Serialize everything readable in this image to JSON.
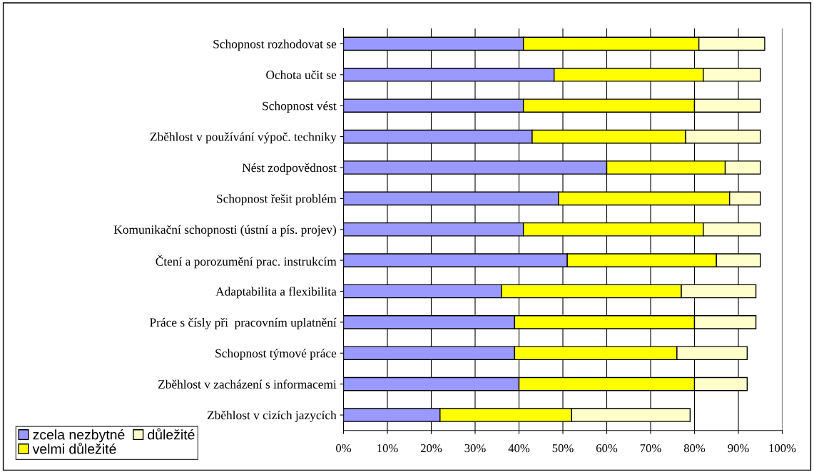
{
  "chart_data": {
    "type": "bar",
    "orientation": "horizontal",
    "stacked": true,
    "categories": [
      "Schopnost rozhodovat se",
      "Ochota učit se",
      "Schopnost vést",
      "Zběhlost v používání výpoč. techniky",
      "Nést zodpovědnost",
      "Schopnost řešit problém",
      "Komunikační schopnosti (ústní a pís. projev)",
      "Čtení a porozumění prac. instrukcím",
      "Adaptabilita a flexibilita",
      "Práce s čísly při  pracovním uplatnění",
      "Schopnost týmové práce",
      "Zběhlost v zacházení s informacemi",
      "Zběhlost v cizích jazycích"
    ],
    "series": [
      {
        "name": "zcela nezbytné",
        "color": "#9999ff",
        "values": [
          41,
          48,
          41,
          43,
          60,
          49,
          41,
          51,
          36,
          39,
          39,
          40,
          22
        ]
      },
      {
        "name": "velmi důležité",
        "color": "#ffff00",
        "values": [
          40,
          34,
          39,
          35,
          27,
          39,
          41,
          34,
          41,
          41,
          37,
          40,
          30
        ]
      },
      {
        "name": "důležité",
        "color": "#ffffcc",
        "values": [
          15,
          13,
          15,
          17,
          8,
          7,
          13,
          10,
          17,
          14,
          16,
          12,
          27
        ]
      }
    ],
    "xlim": [
      0,
      100
    ],
    "xticks": [
      {
        "value": 0,
        "label": "0%"
      },
      {
        "value": 10,
        "label": "10%"
      },
      {
        "value": 20,
        "label": "20%"
      },
      {
        "value": 30,
        "label": "30%"
      },
      {
        "value": 40,
        "label": "40%"
      },
      {
        "value": 50,
        "label": "50%"
      },
      {
        "value": 60,
        "label": "60%"
      },
      {
        "value": 70,
        "label": "70%"
      },
      {
        "value": 80,
        "label": "80%"
      },
      {
        "value": 90,
        "label": "90%"
      },
      {
        "value": 100,
        "label": "100%"
      }
    ],
    "grid": "x",
    "legend": "bottom left"
  }
}
